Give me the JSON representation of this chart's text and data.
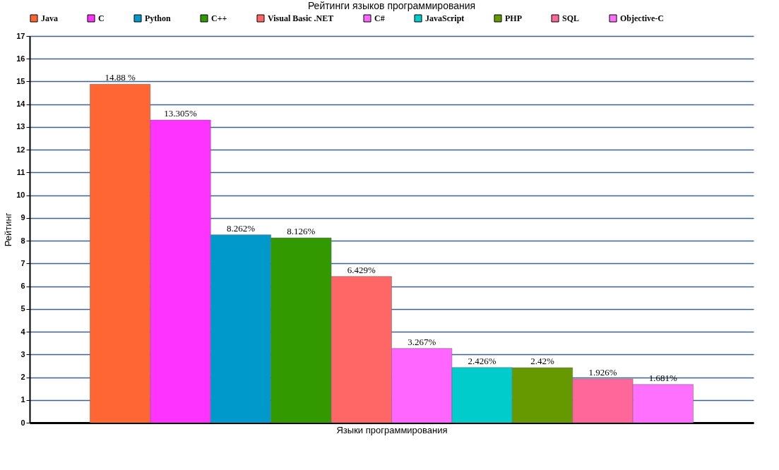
{
  "chart_data": {
    "type": "bar",
    "title": "Рейтинги языков программирования",
    "xlabel": "Языки программирования",
    "ylabel": "Рейтинг",
    "categories": [
      null
    ],
    "series": [
      {
        "name": "Java",
        "color": "#ff6633",
        "values": [
          14.88
        ],
        "value_labels": [
          "14.88 %"
        ]
      },
      {
        "name": "C",
        "color": "#ff33ff",
        "values": [
          13.305
        ],
        "value_labels": [
          "13.305%"
        ]
      },
      {
        "name": "Python",
        "color": "#0099cc",
        "values": [
          8.262
        ],
        "value_labels": [
          "8.262%"
        ]
      },
      {
        "name": "C++",
        "color": "#339900",
        "values": [
          8.126
        ],
        "value_labels": [
          "8.126%"
        ]
      },
      {
        "name": "Visual Basic .NET",
        "color": "#ff6666",
        "values": [
          6.429
        ],
        "value_labels": [
          "6.429%"
        ]
      },
      {
        "name": "C#",
        "color": "#ff66ff",
        "values": [
          3.267
        ],
        "value_labels": [
          "3.267%"
        ]
      },
      {
        "name": "JavaScript",
        "color": "#00cccc",
        "values": [
          2.426
        ],
        "value_labels": [
          "2.426%"
        ]
      },
      {
        "name": "PHP",
        "color": "#669900",
        "values": [
          2.42
        ],
        "value_labels": [
          "2.42%"
        ]
      },
      {
        "name": "SQL",
        "color": "#ff6699",
        "values": [
          1.926
        ],
        "value_labels": [
          "1.926%"
        ]
      },
      {
        "name": "Objective-C",
        "color": "#ff70ff",
        "values": [
          1.681
        ],
        "value_labels": [
          "1.681%"
        ]
      }
    ],
    "ylim": [
      0,
      17
    ],
    "yticks": [
      0,
      1,
      2,
      3,
      4,
      5,
      6,
      7,
      8,
      9,
      10,
      11,
      12,
      13,
      14,
      15,
      16,
      17
    ],
    "grid": "y",
    "legend": "top",
    "tick_labels": "y"
  }
}
